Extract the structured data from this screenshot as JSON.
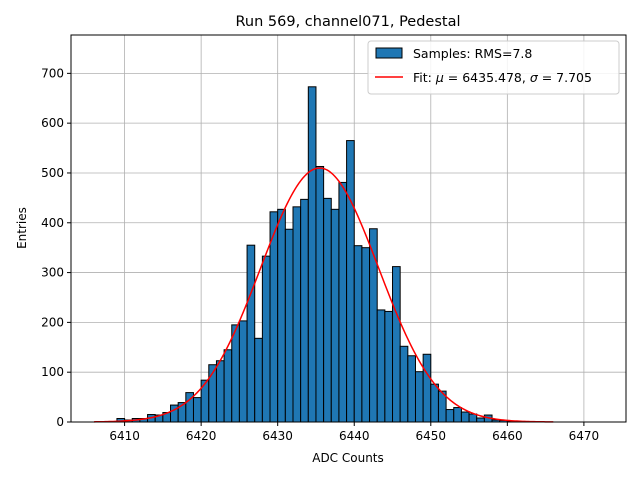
{
  "chart_data": {
    "type": "bar",
    "title": "Run 569, channel071, Pedestal",
    "xlabel": "ADC Counts",
    "ylabel": "Entries",
    "xlim": [
      6403,
      6475.5
    ],
    "ylim": [
      0,
      777
    ],
    "grid": true,
    "xticks": [
      6410,
      6420,
      6430,
      6440,
      6450,
      6460,
      6470
    ],
    "yticks": [
      0,
      100,
      200,
      300,
      400,
      500,
      600,
      700
    ],
    "legend_position": "top-right",
    "series": [
      {
        "name": "Samples: RMS=7.8",
        "kind": "histogram",
        "color": "#1f77b4",
        "edge_color": "#000000",
        "bin_width": 1,
        "x": [
          6406,
          6407,
          6408,
          6409,
          6410,
          6411,
          6412,
          6413,
          6414,
          6415,
          6416,
          6417,
          6418,
          6419,
          6420,
          6421,
          6422,
          6423,
          6424,
          6425,
          6426,
          6427,
          6428,
          6429,
          6430,
          6431,
          6432,
          6433,
          6434,
          6435,
          6436,
          6437,
          6438,
          6439,
          6440,
          6441,
          6442,
          6443,
          6444,
          6445,
          6446,
          6447,
          6448,
          6449,
          6450,
          6451,
          6452,
          6453,
          6454,
          6455,
          6456,
          6457,
          6458,
          6459,
          6460,
          6461,
          6462,
          6463,
          6464,
          6465
        ],
        "values": [
          0,
          0,
          0,
          7,
          4,
          7,
          7,
          15,
          14,
          19,
          34,
          39,
          59,
          49,
          84,
          115,
          123,
          145,
          195,
          203,
          355,
          168,
          333,
          422,
          427,
          387,
          432,
          447,
          673,
          513,
          449,
          427,
          481,
          565,
          354,
          350,
          388,
          225,
          222,
          312,
          152,
          133,
          101,
          136,
          76,
          62,
          25,
          29,
          20,
          16,
          8,
          14,
          4,
          3,
          1,
          0,
          0,
          0,
          0,
          0
        ]
      },
      {
        "name": "Fit: μ = 6435.478, σ = 7.705",
        "kind": "gaussian",
        "color": "#ff0000",
        "mu": 6435.478,
        "sigma": 7.705,
        "amplitude": 510,
        "x_range": [
          6406,
          6466
        ]
      }
    ]
  },
  "legend": {
    "hist_label": "Samples: RMS=7.8",
    "fit_prefix": "Fit: ",
    "mu_symbol": "μ",
    "mu_value": " = 6435.478, ",
    "sigma_symbol": "σ",
    "sigma_value": " = 7.705"
  }
}
